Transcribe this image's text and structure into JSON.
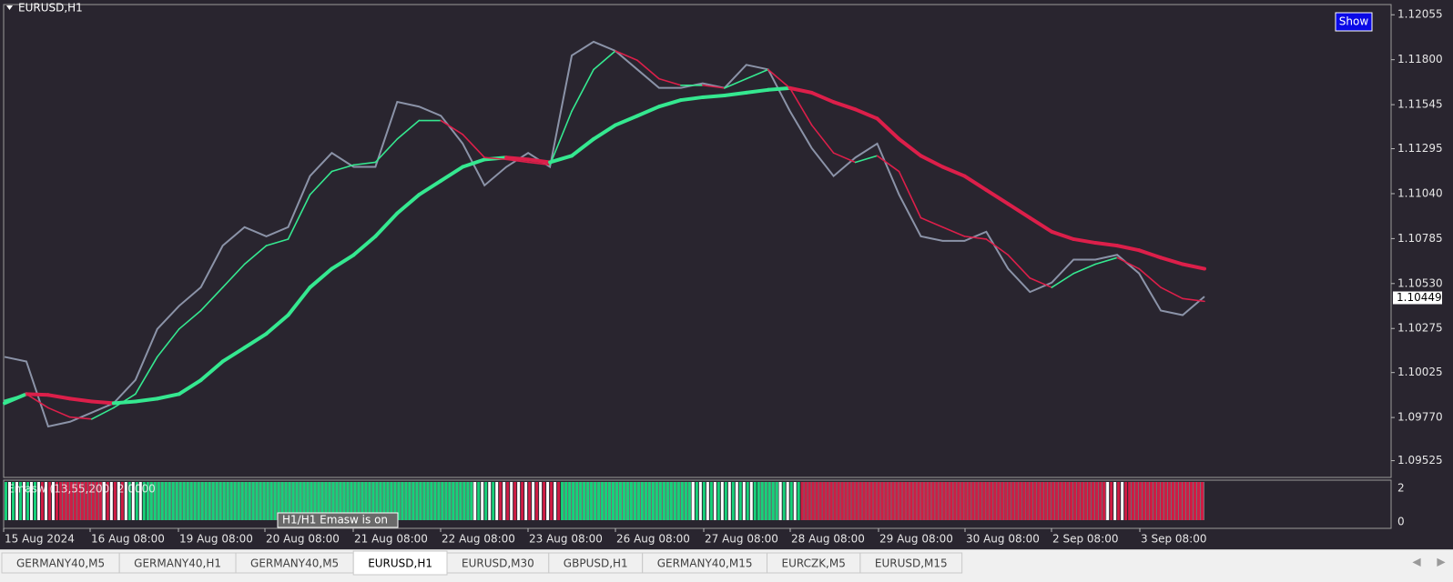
{
  "window": {
    "title": "EURUSD,H1",
    "show_button": "Show"
  },
  "chart": {
    "ylim": [
      1.0943,
      1.12113
    ],
    "yticks": [
      1.12055,
      {
        "value": 1.118,
        "label": "1.11800"
      },
      1.11545,
      1.11295,
      {
        "value": 1.1104,
        "label": "1.11040"
      },
      1.10785,
      {
        "value": 1.1053,
        "label": "1.10530"
      },
      1.10275,
      1.10025,
      {
        "value": 1.0977,
        "label": "1.09770"
      },
      1.09525
    ],
    "current_price": 1.10449,
    "price": [
      1.10114,
      1.10088,
      1.09719,
      1.09746,
      1.09798,
      1.09851,
      1.09983,
      1.10272,
      1.10403,
      1.10509,
      1.10745,
      1.1085,
      1.10798,
      1.1085,
      1.1114,
      1.11271,
      1.11192,
      1.11192,
      1.11561,
      1.11534,
      1.11482,
      1.11324,
      1.11087,
      1.11192,
      1.11271,
      1.11192,
      1.11824,
      1.11902,
      1.1185,
      1.11745,
      1.1164,
      1.1164,
      1.11666,
      1.1164,
      1.11771,
      1.11745,
      1.11508,
      1.11298,
      1.1114,
      1.11245,
      1.11324,
      1.11035,
      1.10798,
      1.10772,
      1.10772,
      1.10824,
      1.10614,
      1.10482,
      1.10535,
      1.10666,
      1.10666,
      1.10693,
      1.10588,
      1.10377,
      1.10351,
      1.10456
    ],
    "fast_ma": [
      1.09867,
      1.09903,
      1.09825,
      1.09772,
      1.09761,
      1.09825,
      1.09903,
      1.10114,
      1.10272,
      1.10377,
      1.10508,
      1.1064,
      1.10745,
      1.10782,
      1.11034,
      1.11166,
      1.11203,
      1.11218,
      1.1135,
      1.11455,
      1.11455,
      1.11376,
      1.11245,
      1.11234,
      1.11218,
      1.11203,
      1.11508,
      1.11744,
      1.1185,
      1.11797,
      1.11692,
      1.11655,
      1.11655,
      1.11639,
      1.11692,
      1.11744,
      1.11639,
      1.11429,
      1.11271,
      1.11218,
      1.11255,
      1.11166,
      1.10903,
      1.1085,
      1.10798,
      1.10782,
      1.10692,
      1.10561,
      1.10508,
      1.10587,
      1.1064,
      1.10677,
      1.10614,
      1.10508,
      1.10445,
      1.10429
    ],
    "slow_ma": [
      1.09851,
      1.09903,
      1.09898,
      1.09877,
      1.09861,
      1.09851,
      1.09861,
      1.09877,
      1.09903,
      1.09982,
      1.10088,
      1.10166,
      1.10245,
      1.10351,
      1.10508,
      1.10614,
      1.10692,
      1.10798,
      1.10929,
      1.11034,
      1.11113,
      1.11192,
      1.11234,
      1.11245,
      1.11234,
      1.11218,
      1.11255,
      1.1135,
      1.11429,
      1.11481,
      1.11534,
      1.11571,
      1.11587,
      1.11597,
      1.11613,
      1.11629,
      1.11639,
      1.11613,
      1.1156,
      1.11518,
      1.11466,
      1.1135,
      1.11255,
      1.11192,
      1.1114,
      1.11061,
      1.10982,
      1.10903,
      1.10824,
      1.10782,
      1.10761,
      1.10745,
      1.10719,
      1.10677,
      1.1064,
      1.10614
    ],
    "colors": {
      "background": "#29252f",
      "price": "#8b93a8",
      "up": "#35e890",
      "down": "#dc1f4a"
    },
    "time_labels": [
      "15 Aug 2024",
      "16 Aug 08:00",
      "19 Aug 08:00",
      "20 Aug 08:00",
      "21 Aug 08:00",
      "22 Aug 08:00",
      "23 Aug 08:00",
      "26 Aug 08:00",
      "27 Aug 08:00",
      "28 Aug 08:00",
      "29 Aug 08:00",
      "30 Aug 08:00",
      "2 Sep 08:00",
      "3 Sep 08:00"
    ]
  },
  "indicator": {
    "label": "Emasw (13,55,200) 2.0000",
    "scale": [
      2,
      0
    ],
    "tooltip": "H1/H1 Emasw is on"
  },
  "tabs": [
    "GERMANY40,M5",
    "GERMANY40,H1",
    "GERMANY40,M5",
    "EURUSD,H1",
    "EURUSD,M30",
    "GBPUSD,H1",
    "GERMANY40,M15",
    "EURCZK,M5",
    "EURUSD,M15"
  ],
  "active_tab": 3
}
